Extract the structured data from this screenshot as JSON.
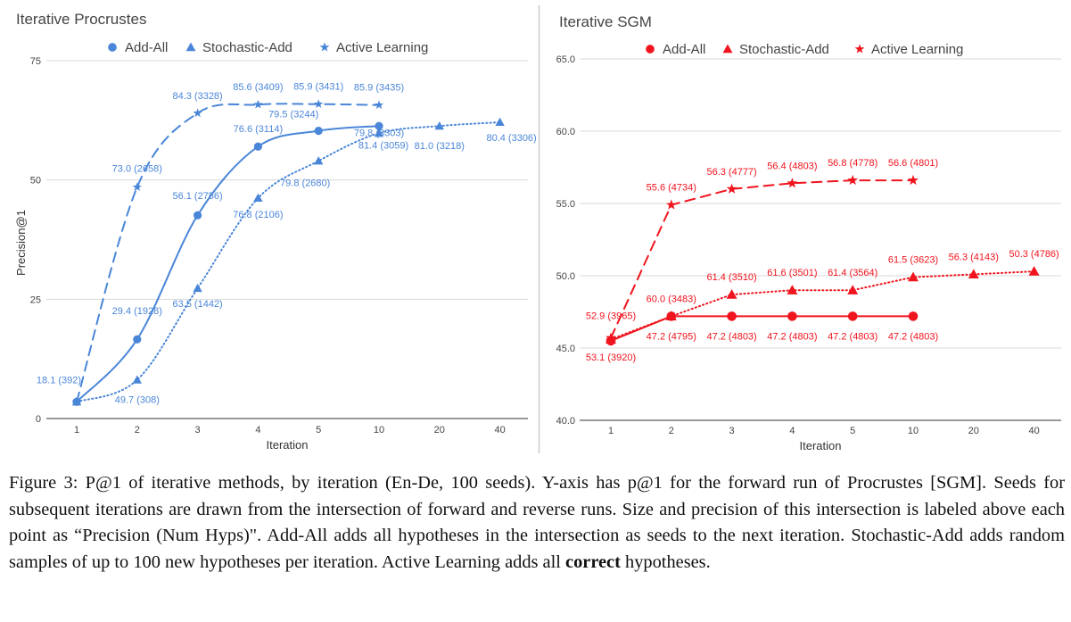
{
  "chart_data": [
    {
      "type": "line",
      "title": "Iterative Procrustes",
      "xlabel": "Iteration",
      "ylabel": "Precision@1",
      "categories": [
        "1",
        "2",
        "3",
        "4",
        "5",
        "10",
        "20",
        "40"
      ],
      "ylim": [
        0,
        75
      ],
      "yticks": [
        "0",
        "25",
        "50",
        "75"
      ],
      "grid": true,
      "legend": "top",
      "color": "#4a86d8",
      "series": [
        {
          "name": "Add-All",
          "marker": "circle",
          "dash": "solid",
          "values": [
            3.5,
            16.6,
            42.6,
            57.0,
            60.3,
            61.3,
            null,
            null
          ],
          "labels": [
            "18.1 (392)",
            "29.4 (1928)",
            "56.1 (2756)",
            "76.6 (3114)",
            "",
            "",
            "",
            ""
          ]
        },
        {
          "name": "Stochastic-Add",
          "marker": "triangle",
          "dash": "dotted",
          "values": [
            3.5,
            8.1,
            27.3,
            46.2,
            54.0,
            59.8,
            61.3,
            62.1
          ],
          "labels": [
            "",
            "49.7 (308)",
            "63.5 (1442)",
            "76.8 (2106)",
            "79.8 (2680)",
            "81.4 (3059)",
            "81.0 (3218)",
            "80.4 (3306)"
          ]
        },
        {
          "name": "Active Learning",
          "marker": "star",
          "dash": "dashed",
          "values": [
            3.5,
            48.5,
            64.0,
            65.8,
            65.9,
            65.7,
            null,
            null
          ],
          "labels": [
            "",
            "73.0 (2658)",
            "84.3 (3328)",
            "85.6 (3409)",
            "85.9 (3431)",
            "85.9 (3435)",
            "",
            ""
          ],
          "extra_labels": [
            "79.5 (3244)",
            "79.8 (3303)"
          ]
        }
      ]
    },
    {
      "type": "line",
      "title": "Iterative SGM",
      "xlabel": "Iteration",
      "ylabel": "",
      "categories": [
        "1",
        "2",
        "3",
        "4",
        "5",
        "10",
        "20",
        "40"
      ],
      "ylim": [
        40,
        65
      ],
      "yticks": [
        "40.0",
        "45.0",
        "50.0",
        "55.0",
        "60.0",
        "65.0"
      ],
      "grid": true,
      "legend": "top",
      "color": "#f0141e",
      "series": [
        {
          "name": "Add-All",
          "marker": "circle",
          "dash": "solid",
          "values": [
            45.5,
            47.2,
            47.2,
            47.2,
            47.2,
            47.2,
            null,
            null
          ],
          "labels": [
            "53.1 (3920)",
            "47.2 (4795)",
            "47.2 (4803)",
            "47.2 (4803)",
            "47.2 (4803)",
            "47.2 (4803)",
            "",
            ""
          ]
        },
        {
          "name": "Stochastic-Add",
          "marker": "triangle",
          "dash": "dotted",
          "values": [
            45.6,
            47.2,
            48.7,
            49.0,
            49.0,
            49.9,
            50.1,
            50.3
          ],
          "labels": [
            "52.9 (3965)",
            "60.0 (3483)",
            "61.4 (3510)",
            "61.6 (3501)",
            "61.4 (3564)",
            "61.5 (3623)",
            "56.3 (4143)",
            "50.3 (4786)"
          ]
        },
        {
          "name": "Active Learning",
          "marker": "star",
          "dash": "dashed",
          "values": [
            45.7,
            54.9,
            56.0,
            56.4,
            56.6,
            56.6,
            null,
            null
          ],
          "labels": [
            "",
            "55.6 (4734)",
            "56.3 (4777)",
            "56.4 (4803)",
            "56.8 (4778)",
            "56.6 (4801)",
            "",
            ""
          ]
        }
      ]
    }
  ],
  "caption": {
    "part1": "Figure 3:  P@1 of iterative methods, by iteration (En-De, 100 seeds).  Y-axis has p@1 for the forward run of Procrustes [SGM]. Seeds for subsequent iterations are drawn from the intersection of forward and reverse runs. Size and precision of this intersection is labeled above each point as “Precision (Num Hyps)\". Add-All adds all hypotheses in the intersection as seeds to the next iteration. Stochastic-Add adds random samples of up to 100 new hypotheses per iteration. Active Learning adds all ",
    "bold": "correct",
    "part2": " hypotheses."
  }
}
